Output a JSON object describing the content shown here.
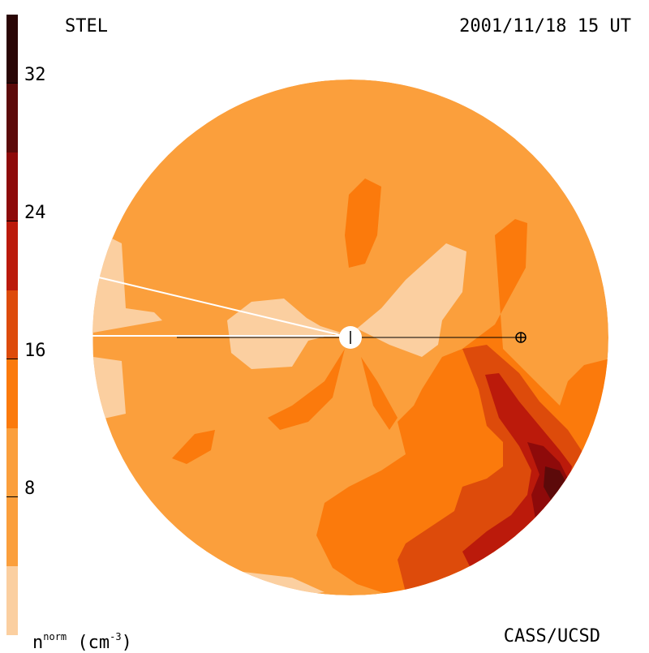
{
  "header": {
    "source": "STEL",
    "timestamp": "2001/11/18 15 UT"
  },
  "footer": {
    "unit_base": "n",
    "unit_sup": "norm",
    "unit_rest": " (cm",
    "unit_exp": "-3",
    "unit_close": ")",
    "credit": "CASS/UCSD"
  },
  "colorbar": {
    "ticks": [
      "32",
      "24",
      "16",
      "8"
    ],
    "levels": [
      {
        "min": 0,
        "max": 4,
        "color": "#fbcfa0"
      },
      {
        "min": 4,
        "max": 12,
        "color": "#fb9f3c"
      },
      {
        "min": 12,
        "max": 16,
        "color": "#fb7a0c"
      },
      {
        "min": 16,
        "max": 20,
        "color": "#dd4b0b"
      },
      {
        "min": 20,
        "max": 24,
        "color": "#bb1a0b"
      },
      {
        "min": 24,
        "max": 28,
        "color": "#8e0a0a"
      },
      {
        "min": 28,
        "max": 32,
        "color": "#5c0a0a"
      },
      {
        "min": 32,
        "max": 36,
        "color": "#2a0606"
      }
    ]
  },
  "colors": {
    "background": "#fb9f3c",
    "low": "#fbcfa0",
    "mid": "#fb7a0c",
    "high": "#dd4b0b",
    "higher": "#bb1a0b",
    "peak": "#5c0a0a"
  }
}
